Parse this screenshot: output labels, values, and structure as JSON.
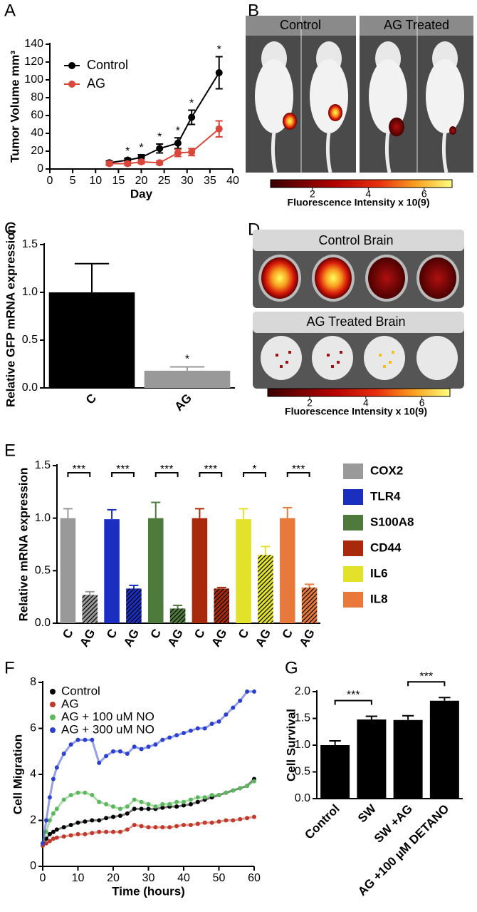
{
  "chart_data": [
    {
      "panel": "A",
      "type": "line",
      "x_label": "Day",
      "y_label": "Tumor Volume mm³",
      "x": [
        13,
        17,
        20,
        24,
        28,
        31,
        37
      ],
      "series": [
        {
          "name": "Control",
          "color": "#000000",
          "values": [
            7,
            10,
            13,
            23,
            29,
            58,
            108
          ],
          "errors": [
            2,
            2,
            3,
            5,
            6,
            8,
            18
          ]
        },
        {
          "name": "AG",
          "color": "#d9473a",
          "values": [
            6,
            6,
            8,
            7,
            18,
            19,
            45
          ],
          "errors": [
            2,
            2,
            2,
            2,
            4,
            4,
            9
          ]
        }
      ],
      "significance": [
        null,
        "*",
        "*",
        "*",
        "*",
        "*",
        "*"
      ],
      "xlim": [
        0,
        40
      ],
      "xticks": [
        0,
        5,
        10,
        15,
        20,
        25,
        30,
        35,
        40
      ],
      "ylim": [
        0,
        140
      ],
      "yticks": [
        0,
        20,
        40,
        60,
        80,
        100,
        120,
        140
      ]
    },
    {
      "panel": "C",
      "type": "bar",
      "y_label": "Relative GFP mRNA expression",
      "categories": [
        "C",
        "AG"
      ],
      "values": [
        1.0,
        0.18
      ],
      "errors": [
        0.3,
        0.04
      ],
      "colors": [
        "#000000",
        "#999999"
      ],
      "legend": true,
      "significance": [
        null,
        "*"
      ],
      "ylim": [
        0,
        1.5
      ],
      "yticks": [
        {
          "value": 0,
          "label": "0.0"
        },
        {
          "value": 0.5,
          "label": "0.5"
        },
        {
          "value": 1,
          "label": "1.0"
        },
        {
          "value": 1.5,
          "label": "1.5"
        }
      ]
    },
    {
      "panel": "E",
      "type": "grouped_bar",
      "y_label": "Relative mRNA expression",
      "categories": [
        "C",
        "AG"
      ],
      "series": [
        {
          "name": "COX2",
          "color": "#999999",
          "values": [
            1.0,
            0.27
          ],
          "errors": [
            0.09,
            0.03
          ],
          "significance": "***"
        },
        {
          "name": "TLR4",
          "color": "#1a2fc0",
          "values": [
            0.99,
            0.33
          ],
          "errors": [
            0.09,
            0.03
          ],
          "significance": "***"
        },
        {
          "name": "S100A8",
          "color": "#4e7a3c",
          "values": [
            1.0,
            0.14
          ],
          "errors": [
            0.15,
            0.03
          ],
          "significance": "***"
        },
        {
          "name": "CD44",
          "color": "#a8290c",
          "values": [
            1.0,
            0.33
          ],
          "errors": [
            0.09,
            0.01
          ],
          "significance": "***"
        },
        {
          "name": "IL6",
          "color": "#e2e22a",
          "values": [
            0.99,
            0.65
          ],
          "errors": [
            0.1,
            0.08
          ],
          "significance": "*"
        },
        {
          "name": "IL8",
          "color": "#e8793a",
          "values": [
            1.0,
            0.34
          ],
          "errors": [
            0.1,
            0.03
          ],
          "significance": "***"
        }
      ],
      "ylim": [
        0,
        1.5
      ],
      "yticks": [
        {
          "value": 0,
          "label": "0.0"
        },
        {
          "value": 0.5,
          "label": "0.5"
        },
        {
          "value": 1,
          "label": "1.0"
        },
        {
          "value": 1.5,
          "label": "1.5"
        }
      ]
    },
    {
      "panel": "F",
      "type": "scatter_line",
      "x_label": "Time (hours)",
      "y_label": "Cell Migration",
      "x": [
        0,
        1,
        2,
        3,
        4,
        6,
        8,
        10,
        12,
        14,
        16,
        18,
        20,
        22,
        24,
        26,
        28,
        30,
        32,
        34,
        36,
        38,
        40,
        42,
        44,
        46,
        48,
        50,
        52,
        54,
        56,
        58,
        60
      ],
      "series": [
        {
          "name": "Control",
          "color": "#000000",
          "values": [
            1.0,
            1.2,
            1.4,
            1.5,
            1.6,
            1.7,
            1.8,
            1.9,
            1.95,
            2.0,
            2.0,
            2.1,
            2.15,
            2.2,
            2.3,
            2.5,
            2.5,
            2.5,
            2.5,
            2.55,
            2.6,
            2.6,
            2.65,
            2.7,
            2.8,
            2.9,
            3.0,
            3.1,
            3.2,
            3.3,
            3.4,
            3.5,
            3.8
          ]
        },
        {
          "name": "AG",
          "color": "#c0392b",
          "values": [
            0.9,
            1.0,
            1.1,
            1.2,
            1.25,
            1.3,
            1.35,
            1.4,
            1.4,
            1.45,
            1.5,
            1.5,
            1.5,
            1.5,
            1.6,
            1.8,
            1.75,
            1.7,
            1.7,
            1.7,
            1.7,
            1.75,
            1.8,
            1.8,
            1.85,
            1.9,
            1.9,
            1.95,
            2.0,
            2.0,
            2.05,
            2.1,
            2.15
          ]
        },
        {
          "name": "AG + 100 uM NO",
          "color": "#5cb85c",
          "values": [
            1.0,
            1.5,
            2.0,
            2.3,
            2.5,
            2.9,
            3.1,
            3.2,
            3.2,
            3.1,
            2.8,
            2.7,
            2.6,
            2.5,
            2.6,
            2.9,
            2.8,
            2.7,
            2.6,
            2.7,
            2.7,
            2.8,
            2.8,
            2.9,
            3.0,
            3.0,
            3.1,
            3.1,
            3.2,
            3.3,
            3.4,
            3.5,
            3.7
          ]
        },
        {
          "name": "AG + 300 uM NO",
          "color": "#2b3fd0",
          "values": [
            1.0,
            2.0,
            3.0,
            3.8,
            4.3,
            4.9,
            5.3,
            5.5,
            5.5,
            5.5,
            4.5,
            4.8,
            5.0,
            5.0,
            4.9,
            5.2,
            5.1,
            5.2,
            5.3,
            5.5,
            5.6,
            5.7,
            5.8,
            5.9,
            6.0,
            6.0,
            6.2,
            6.3,
            6.6,
            6.9,
            7.2,
            7.6,
            7.6
          ]
        }
      ],
      "xlim": [
        0,
        60
      ],
      "xticks": [
        0,
        10,
        20,
        30,
        40,
        50,
        60
      ],
      "ylim": [
        0,
        8
      ],
      "yticks": [
        0,
        2,
        4,
        6,
        8
      ]
    },
    {
      "panel": "G",
      "type": "bar",
      "y_label": "Cell Survival",
      "categories": [
        "Control",
        "SW",
        "SW +AG",
        "AG +100 µM DETANO"
      ],
      "values": [
        1.0,
        1.48,
        1.47,
        1.83
      ],
      "errors": [
        0.08,
        0.06,
        0.08,
        0.06
      ],
      "colors": [
        "#000000",
        "#000000",
        "#000000",
        "#000000"
      ],
      "significance": [
        null,
        "***",
        null,
        "***"
      ],
      "ylim": [
        0,
        2
      ],
      "yticks": [
        {
          "value": 0,
          "label": "0.0"
        },
        {
          "value": 0.5,
          "label": "0.5"
        },
        {
          "value": 1,
          "label": "1.0"
        },
        {
          "value": 1.5,
          "label": "1.5"
        },
        {
          "value": 2,
          "label": "2.0"
        }
      ]
    }
  ],
  "images": [
    {
      "panel": "B",
      "labels": [
        "Control",
        "AG Treated"
      ],
      "colorbar": {
        "label": "Fluorescence Intensity x 10(9)",
        "lim": [
          0.5,
          7
        ],
        "ticks": [
          2,
          4,
          6
        ]
      }
    },
    {
      "panel": "D",
      "labels": [
        "Control Brain",
        "AG Treated Brain"
      ],
      "colorbar": {
        "label": "Fluorescence Intensity x 10(9)",
        "lim": [
          0.5,
          7
        ],
        "ticks": [
          2,
          4,
          6
        ]
      }
    }
  ]
}
